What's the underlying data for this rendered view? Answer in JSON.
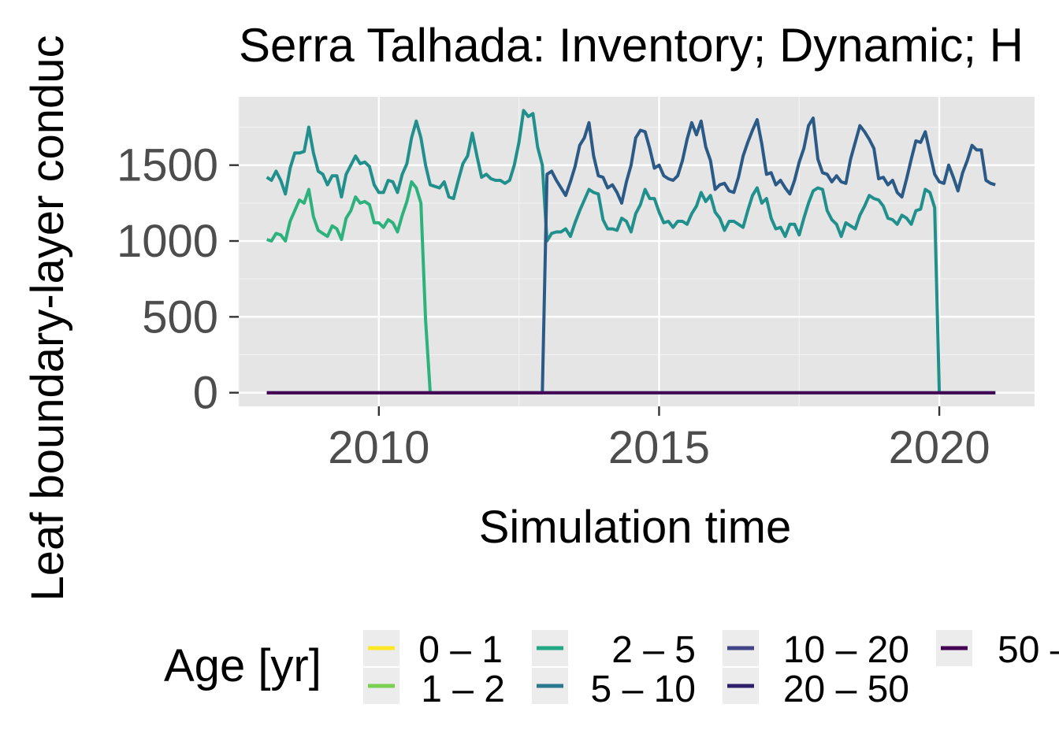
{
  "chart_data": {
    "type": "line",
    "title": "Serra Talhada: Inventory; Dynamic; H",
    "xlabel": "Simulation time",
    "ylabel": "Leaf boundary-layer conduc",
    "xlim": [
      2007.5,
      2021.7
    ],
    "ylim": [
      -90,
      1950
    ],
    "x_ticks": [
      2010,
      2015,
      2020
    ],
    "x_tick_labels": [
      "2010",
      "2015",
      "2020"
    ],
    "y_ticks": [
      0,
      500,
      1000,
      1500
    ],
    "y_tick_labels": [
      "0",
      "500",
      "1000",
      "1500"
    ],
    "grid": true,
    "legend": {
      "title": "Age [yr]",
      "placement": "bottom",
      "entries": [
        {
          "label": "0 – 1",
          "color": "#fde725"
        },
        {
          "label": "1 – 2",
          "color": "#7ad151"
        },
        {
          "label": "2 – 5",
          "color": "#22a884"
        },
        {
          "label": "5 – 10",
          "color": "#2a788e"
        },
        {
          "label": "10 – 20",
          "color": "#414487"
        },
        {
          "label": "20 – 50",
          "color": "#2e1f6b"
        },
        {
          "label": "50 –",
          "color": "#440154"
        }
      ]
    },
    "series": [
      {
        "name": "2 – 5",
        "color": "#2db27d",
        "x": [
          2008.0,
          2008.083,
          2008.167,
          2008.25,
          2008.333,
          2008.417,
          2008.5,
          2008.583,
          2008.667,
          2008.75,
          2008.833,
          2008.917,
          2009.0,
          2009.083,
          2009.167,
          2009.25,
          2009.333,
          2009.417,
          2009.5,
          2009.583,
          2009.667,
          2009.75,
          2009.833,
          2009.917,
          2010.0,
          2010.083,
          2010.167,
          2010.25,
          2010.333,
          2010.417,
          2010.5,
          2010.583,
          2010.667,
          2010.75,
          2010.833,
          2010.917,
          2011.0,
          2011.5,
          2012.0,
          2012.5,
          2013.0,
          2014.0,
          2015.0,
          2016.0,
          2017.0,
          2018.0,
          2019.0,
          2020.0,
          2021.0
        ],
        "values": [
          1010,
          1000,
          1050,
          1040,
          1000,
          1130,
          1200,
          1270,
          1250,
          1340,
          1160,
          1070,
          1050,
          1030,
          1100,
          1080,
          1010,
          1150,
          1200,
          1290,
          1250,
          1260,
          1240,
          1120,
          1120,
          1090,
          1140,
          1120,
          1060,
          1170,
          1260,
          1390,
          1350,
          1250,
          480,
          0,
          0,
          0,
          0,
          0,
          0,
          0,
          0,
          0,
          0,
          0,
          0,
          0,
          0
        ]
      },
      {
        "name": "5 – 10",
        "color": "#21908d",
        "x": [
          2008.0,
          2008.083,
          2008.167,
          2008.25,
          2008.333,
          2008.417,
          2008.5,
          2008.583,
          2008.667,
          2008.75,
          2008.833,
          2008.917,
          2009.0,
          2009.083,
          2009.167,
          2009.25,
          2009.333,
          2009.417,
          2009.5,
          2009.583,
          2009.667,
          2009.75,
          2009.833,
          2009.917,
          2010.0,
          2010.083,
          2010.167,
          2010.25,
          2010.333,
          2010.417,
          2010.5,
          2010.583,
          2010.667,
          2010.75,
          2010.833,
          2010.917,
          2011.0,
          2011.083,
          2011.167,
          2011.25,
          2011.333,
          2011.417,
          2011.5,
          2011.583,
          2011.667,
          2011.75,
          2011.833,
          2011.917,
          2012.0,
          2012.083,
          2012.167,
          2012.25,
          2012.333,
          2012.417,
          2012.5,
          2012.583,
          2012.667,
          2012.75,
          2012.833,
          2012.917,
          2013.0,
          2013.083,
          2013.167,
          2013.25,
          2013.333,
          2013.417,
          2013.5,
          2013.583,
          2013.667,
          2013.75,
          2013.833,
          2013.917,
          2014.0,
          2014.083,
          2014.167,
          2014.25,
          2014.333,
          2014.417,
          2014.5,
          2014.583,
          2014.667,
          2014.75,
          2014.833,
          2014.917,
          2015.0,
          2015.083,
          2015.167,
          2015.25,
          2015.333,
          2015.417,
          2015.5,
          2015.583,
          2015.667,
          2015.75,
          2015.833,
          2015.917,
          2016.0,
          2016.083,
          2016.167,
          2016.25,
          2016.333,
          2016.417,
          2016.5,
          2016.583,
          2016.667,
          2016.75,
          2016.833,
          2016.917,
          2017.0,
          2017.083,
          2017.167,
          2017.25,
          2017.333,
          2017.417,
          2017.5,
          2017.583,
          2017.667,
          2017.75,
          2017.833,
          2017.917,
          2018.0,
          2018.083,
          2018.167,
          2018.25,
          2018.333,
          2018.417,
          2018.5,
          2018.583,
          2018.667,
          2018.75,
          2018.833,
          2018.917,
          2019.0,
          2019.083,
          2019.167,
          2019.25,
          2019.333,
          2019.417,
          2019.5,
          2019.583,
          2019.667,
          2019.75,
          2019.833,
          2019.917,
          2020.0,
          2020.5,
          2021.0
        ],
        "values": [
          1420,
          1400,
          1460,
          1400,
          1310,
          1480,
          1580,
          1580,
          1590,
          1750,
          1580,
          1460,
          1440,
          1370,
          1430,
          1430,
          1290,
          1440,
          1500,
          1560,
          1510,
          1520,
          1490,
          1370,
          1320,
          1320,
          1400,
          1390,
          1320,
          1440,
          1510,
          1680,
          1790,
          1680,
          1500,
          1370,
          1360,
          1350,
          1390,
          1290,
          1280,
          1400,
          1510,
          1560,
          1710,
          1560,
          1420,
          1440,
          1410,
          1400,
          1400,
          1380,
          1400,
          1500,
          1650,
          1860,
          1820,
          1840,
          1620,
          1500,
          1000,
          1050,
          1060,
          1060,
          1080,
          1030,
          1120,
          1200,
          1270,
          1340,
          1320,
          1310,
          1140,
          1080,
          1080,
          1070,
          1150,
          1130,
          1060,
          1180,
          1240,
          1340,
          1280,
          1280,
          1190,
          1120,
          1130,
          1090,
          1130,
          1130,
          1110,
          1180,
          1230,
          1320,
          1260,
          1300,
          1190,
          1150,
          1070,
          1130,
          1130,
          1110,
          1090,
          1200,
          1300,
          1350,
          1250,
          1280,
          1150,
          1080,
          1090,
          1030,
          1110,
          1110,
          1040,
          1150,
          1250,
          1330,
          1350,
          1340,
          1200,
          1140,
          1110,
          1030,
          1120,
          1100,
          1080,
          1170,
          1230,
          1300,
          1280,
          1270,
          1230,
          1150,
          1140,
          1110,
          1170,
          1150,
          1110,
          1200,
          1210,
          1340,
          1320,
          1220,
          0,
          0,
          0
        ]
      },
      {
        "name": "10 – 20",
        "color": "#2c5a87",
        "x": [
          2008.0,
          2012.917,
          2013.0,
          2013.083,
          2013.167,
          2013.25,
          2013.333,
          2013.417,
          2013.5,
          2013.583,
          2013.667,
          2013.75,
          2013.833,
          2013.917,
          2014.0,
          2014.083,
          2014.167,
          2014.25,
          2014.333,
          2014.417,
          2014.5,
          2014.583,
          2014.667,
          2014.75,
          2014.833,
          2014.917,
          2015.0,
          2015.083,
          2015.167,
          2015.25,
          2015.333,
          2015.417,
          2015.5,
          2015.583,
          2015.667,
          2015.75,
          2015.833,
          2015.917,
          2016.0,
          2016.083,
          2016.167,
          2016.25,
          2016.333,
          2016.417,
          2016.5,
          2016.583,
          2016.667,
          2016.75,
          2016.833,
          2016.917,
          2017.0,
          2017.083,
          2017.167,
          2017.25,
          2017.333,
          2017.417,
          2017.5,
          2017.583,
          2017.667,
          2017.75,
          2017.833,
          2017.917,
          2018.0,
          2018.083,
          2018.167,
          2018.25,
          2018.333,
          2018.417,
          2018.5,
          2018.583,
          2018.667,
          2018.75,
          2018.833,
          2018.917,
          2019.0,
          2019.083,
          2019.167,
          2019.25,
          2019.333,
          2019.417,
          2019.5,
          2019.583,
          2019.667,
          2019.75,
          2019.833,
          2019.917,
          2020.0,
          2020.083,
          2020.167,
          2020.25,
          2020.333,
          2020.417,
          2020.5,
          2020.583,
          2020.667,
          2020.75,
          2020.833,
          2020.917,
          2021.0
        ],
        "values": [
          0,
          0,
          1440,
          1460,
          1400,
          1350,
          1300,
          1390,
          1490,
          1630,
          1680,
          1780,
          1560,
          1430,
          1420,
          1350,
          1370,
          1320,
          1250,
          1390,
          1500,
          1680,
          1730,
          1720,
          1610,
          1480,
          1500,
          1430,
          1410,
          1400,
          1430,
          1530,
          1670,
          1780,
          1700,
          1790,
          1620,
          1530,
          1340,
          1370,
          1380,
          1330,
          1320,
          1420,
          1560,
          1650,
          1730,
          1800,
          1640,
          1440,
          1450,
          1370,
          1400,
          1350,
          1310,
          1400,
          1520,
          1610,
          1760,
          1810,
          1540,
          1450,
          1440,
          1390,
          1430,
          1390,
          1380,
          1540,
          1650,
          1760,
          1720,
          1670,
          1610,
          1410,
          1420,
          1370,
          1400,
          1320,
          1290,
          1410,
          1540,
          1660,
          1650,
          1720,
          1580,
          1440,
          1390,
          1380,
          1500,
          1420,
          1330,
          1450,
          1530,
          1630,
          1600,
          1600,
          1400,
          1380,
          1370
        ]
      },
      {
        "name": "50 –",
        "color": "#440154",
        "x": [
          2008.0,
          2021.0
        ],
        "values": [
          0,
          0
        ]
      }
    ]
  }
}
